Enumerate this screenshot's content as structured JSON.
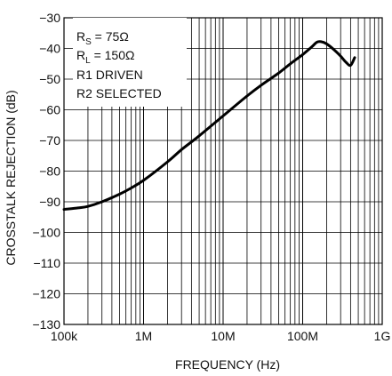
{
  "chart_data": {
    "type": "line",
    "xlabel": "FREQUENCY (Hz)",
    "ylabel": "CROSSTALK REJECTION (dB)",
    "xscale": "log",
    "xlim": [
      100000,
      1000000000
    ],
    "ylim": [
      -130,
      -30
    ],
    "grid": true,
    "x_ticks": [
      {
        "value": 100000,
        "label": "100k"
      },
      {
        "value": 1000000,
        "label": "1M"
      },
      {
        "value": 10000000,
        "label": "10M"
      },
      {
        "value": 100000000,
        "label": "100M"
      },
      {
        "value": 1000000000,
        "label": "1G"
      }
    ],
    "y_ticks": [
      {
        "value": -30,
        "label": "−30"
      },
      {
        "value": -40,
        "label": "−40"
      },
      {
        "value": -50,
        "label": "−50"
      },
      {
        "value": -60,
        "label": "−60"
      },
      {
        "value": -70,
        "label": "−70"
      },
      {
        "value": -80,
        "label": "−80"
      },
      {
        "value": -90,
        "label": "−90"
      },
      {
        "value": -100,
        "label": "−100"
      },
      {
        "value": -110,
        "label": "−110"
      },
      {
        "value": -120,
        "label": "−120"
      },
      {
        "value": -130,
        "label": "−130"
      }
    ],
    "annotations": {
      "rs": {
        "main": "R",
        "sub": "S",
        "rest": " = 75Ω"
      },
      "rl": {
        "main": "R",
        "sub": "L",
        "rest": " = 150Ω"
      },
      "line3": "R1 DRIVEN",
      "line4": "R2 SELECTED"
    },
    "series": [
      {
        "x": [
          100000,
          150000,
          200000,
          300000,
          500000,
          700000,
          1000000,
          2000000,
          3000000,
          5000000,
          10000000,
          20000000,
          30000000,
          50000000,
          70000000,
          100000000,
          130000000,
          150000000,
          170000000,
          200000000,
          250000000,
          300000000,
          350000000,
          400000000,
          450000000
        ],
        "y": [
          -92.5,
          -92.0,
          -91.5,
          -90.0,
          -87.5,
          -85.5,
          -83.0,
          -77.0,
          -73.0,
          -68.5,
          -62.0,
          -55.5,
          -52.0,
          -48.0,
          -45.0,
          -42.0,
          -39.5,
          -38.0,
          -37.8,
          -38.5,
          -40.5,
          -42.5,
          -44.5,
          -45.5,
          -43.0
        ]
      }
    ]
  }
}
